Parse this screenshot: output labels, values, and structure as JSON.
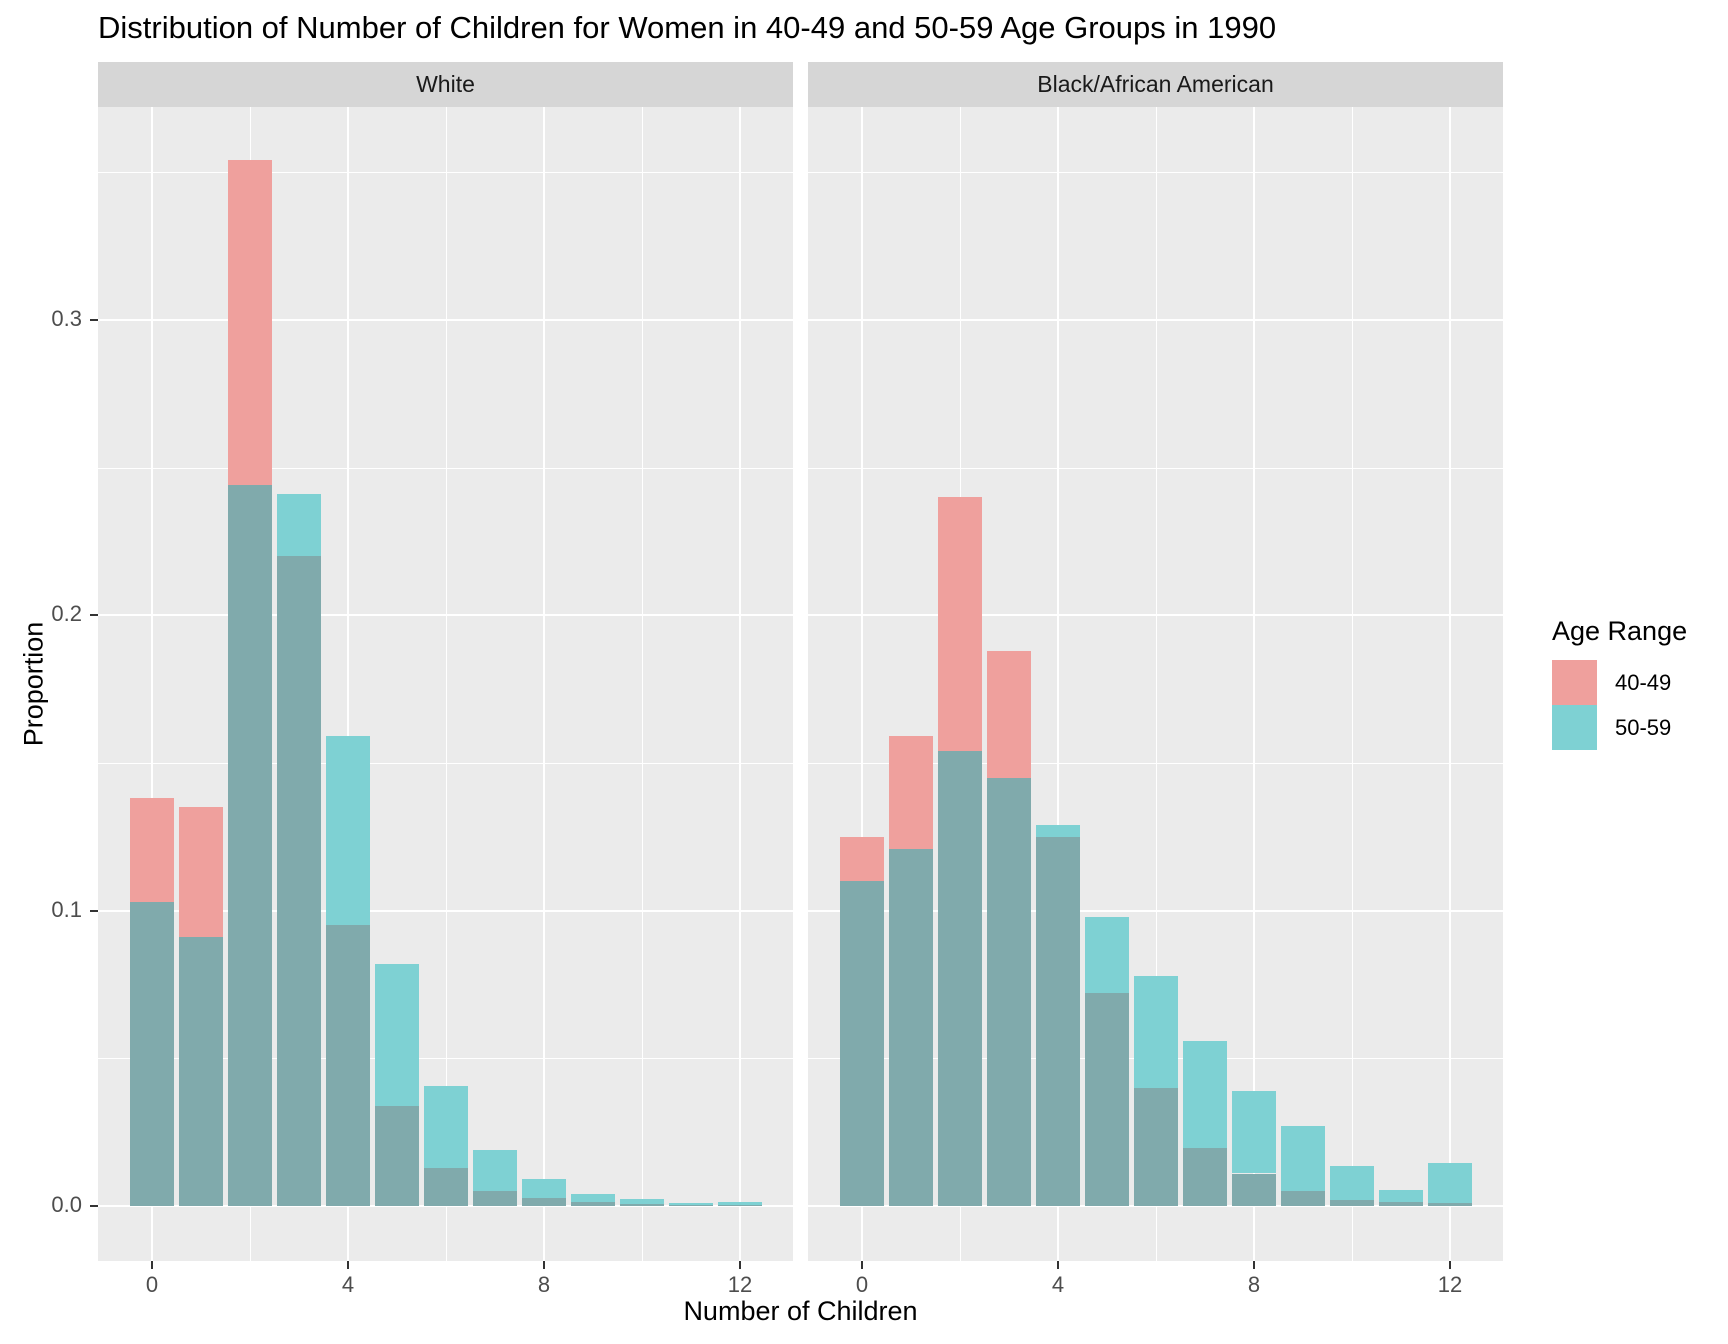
{
  "title": "Distribution of Number of Children for Women in 40-49 and 50-59 Age Groups in 1990",
  "facets": [
    {
      "label": "White"
    },
    {
      "label": "Black/African American"
    }
  ],
  "x_axis": {
    "title": "Number of Children",
    "ticks": [
      "0",
      "4",
      "8",
      "12"
    ],
    "tick_values": [
      0,
      4,
      8,
      12
    ]
  },
  "y_axis": {
    "title": "Proportion",
    "ticks": [
      "0.0",
      "0.1",
      "0.2",
      "0.3"
    ],
    "tick_values": [
      0,
      0.1,
      0.2,
      0.3
    ]
  },
  "legend": {
    "title": "Age Range",
    "entries": [
      {
        "label": "40-49",
        "color": "#efa09d"
      },
      {
        "label": "50-59",
        "color": "#7ed1d3"
      }
    ]
  },
  "colors": {
    "bar_40_49": "#efa09d",
    "bar_50_59": "#7ed1d3",
    "bar_overlap": "#80aaac",
    "panel_bg": "#ebebeb",
    "strip_bg": "#d6d6d6",
    "gridline": "#ffffff",
    "axis_text": "#4d4d4d",
    "text": "#000000"
  },
  "chart_data": {
    "type": "bar",
    "subtype": "overlapping-histogram-proportions",
    "title": "Distribution of Number of Children for Women in 40-49 and 50-59 Age Groups in 1990",
    "xlabel": "Number of Children",
    "ylabel": "Proportion",
    "categories": [
      0,
      1,
      2,
      3,
      4,
      5,
      6,
      7,
      8,
      9,
      10,
      11,
      12
    ],
    "xlim": [
      -1.1,
      13.1
    ],
    "ylim": [
      0,
      0.372
    ],
    "grid": true,
    "legend_position": "right",
    "facets": [
      {
        "label": "White",
        "series": [
          {
            "name": "40-49",
            "values": [
              0.138,
              0.135,
              0.354,
              0.22,
              0.095,
              0.034,
              0.013,
              0.005,
              0.0026,
              0.0012,
              0.0006,
              0.0004,
              0.0005
            ]
          },
          {
            "name": "50-59",
            "values": [
              0.103,
              0.091,
              0.244,
              0.241,
              0.159,
              0.082,
              0.0405,
              0.019,
              0.009,
              0.004,
              0.0023,
              0.0009,
              0.0015
            ]
          }
        ]
      },
      {
        "label": "Black/African American",
        "series": [
          {
            "name": "40-49",
            "values": [
              0.125,
              0.159,
              0.24,
              0.188,
              0.125,
              0.072,
              0.04,
              0.0195,
              0.011,
              0.005,
              0.002,
              0.0015,
              0.001
            ]
          },
          {
            "name": "50-59",
            "values": [
              0.11,
              0.121,
              0.154,
              0.145,
              0.129,
              0.098,
              0.078,
              0.056,
              0.039,
              0.027,
              0.0137,
              0.0055,
              0.0145
            ]
          }
        ]
      }
    ]
  }
}
